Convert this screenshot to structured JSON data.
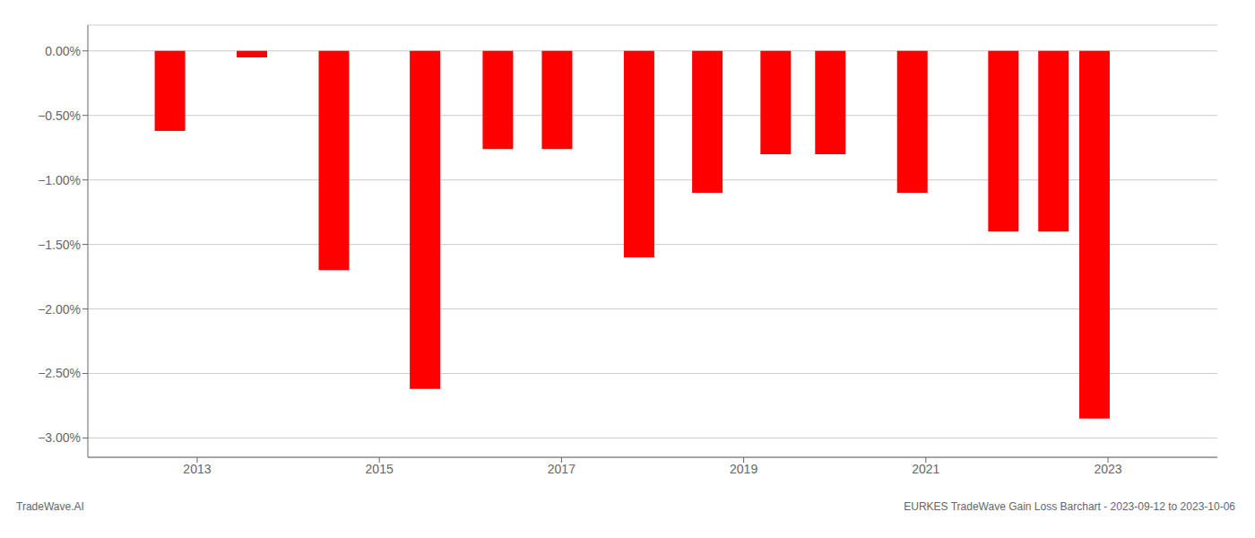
{
  "chart_data": {
    "type": "bar",
    "x": [
      2012.7,
      2013.6,
      2014.5,
      2015.5,
      2016.3,
      2016.95,
      2017.85,
      2018.6,
      2019.35,
      2019.95,
      2020.85,
      2021.85,
      2022.4,
      2022.85
    ],
    "values": [
      -0.62,
      -0.05,
      -1.7,
      -2.62,
      -0.76,
      -0.76,
      -1.6,
      -1.1,
      -0.8,
      -0.8,
      -1.1,
      -1.4,
      -1.4,
      -2.85
    ],
    "color": "#ff0000",
    "xlim": [
      2011.8,
      2024.2
    ],
    "xticks": [
      2013,
      2015,
      2017,
      2019,
      2021,
      2023
    ],
    "ylim": [
      -3.15,
      0.2
    ],
    "yticks": [
      {
        "value": 0.0,
        "label": "0.00%"
      },
      {
        "value": -0.5,
        "label": "−0.50%"
      },
      {
        "value": -1.0,
        "label": "−1.00%"
      },
      {
        "value": -1.5,
        "label": "−1.50%"
      },
      {
        "value": -2.0,
        "label": "−2.00%"
      },
      {
        "value": -2.5,
        "label": "−2.50%"
      },
      {
        "value": -3.0,
        "label": "−3.00%"
      }
    ],
    "grid": true,
    "annotations": [
      "TradeWave.AI",
      "EURKES TradeWave Gain Loss Barchart - 2023-09-12 to 2023-10-06"
    ]
  }
}
